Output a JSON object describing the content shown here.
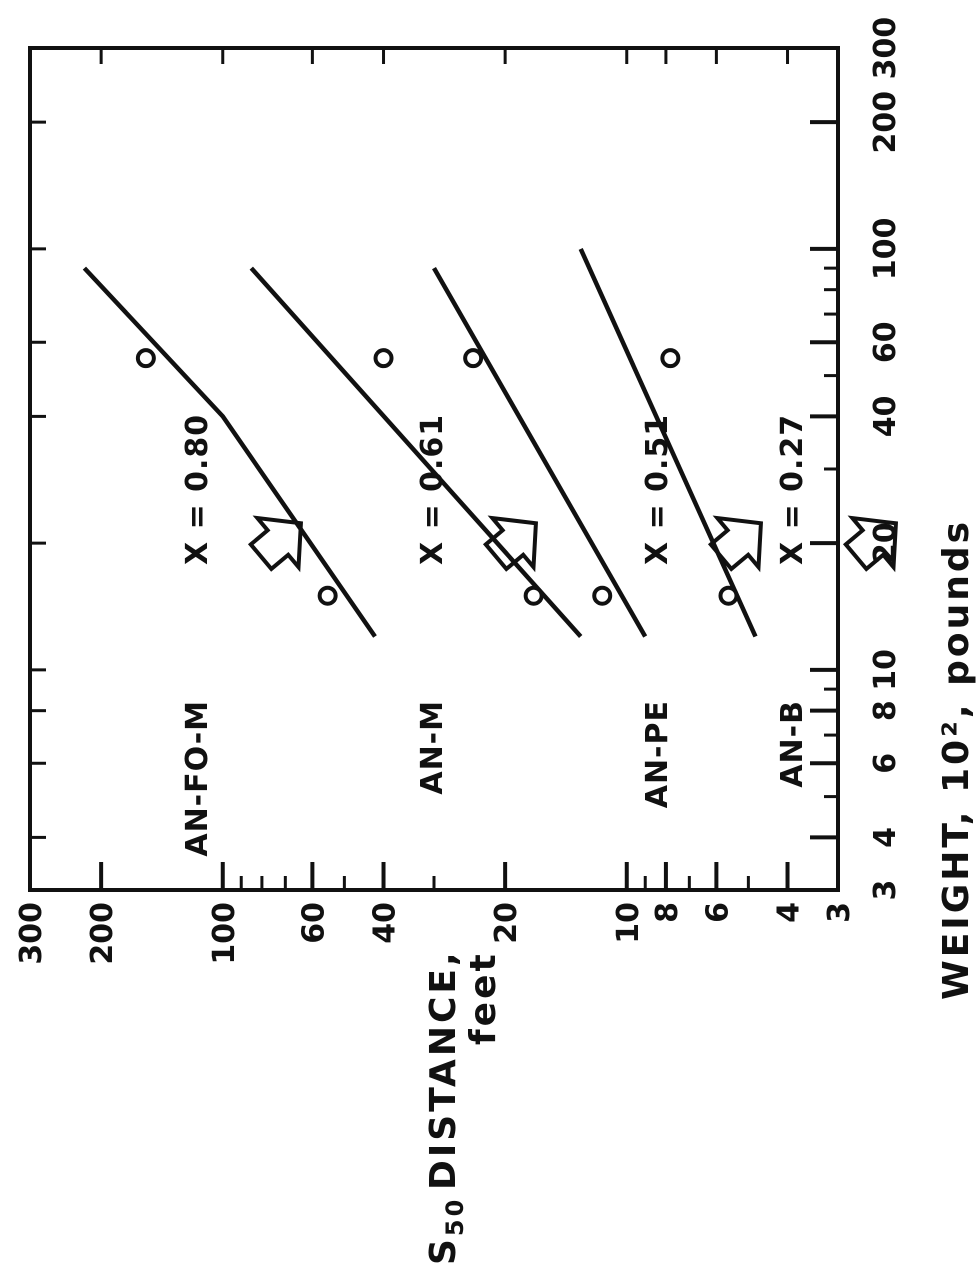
{
  "chart_data": {
    "type": "line",
    "x_scale": "log",
    "y_scale": "log",
    "xlim": [
      3,
      300
    ],
    "ylim": [
      3,
      300
    ],
    "x_ticks": [
      3,
      4,
      6,
      8,
      10,
      20,
      40,
      60,
      100,
      200,
      300
    ],
    "x_tick_labels": [
      "3",
      "4",
      "6",
      "8",
      "10",
      "20",
      "40",
      "60",
      "100",
      "200",
      "300"
    ],
    "y_ticks": [
      3,
      4,
      6,
      8,
      10,
      20,
      40,
      60,
      100,
      200,
      300
    ],
    "y_tick_labels": [
      "3",
      "4",
      "6",
      "8",
      "10",
      "20",
      "40",
      "60",
      "100",
      "200",
      "300"
    ],
    "xlabel": "WEIGHT, 10², pounds",
    "ylabel": {
      "subscript_symbol": "S",
      "subscript": "50",
      "line1": "DISTANCE,",
      "line2": "feet"
    },
    "series": [
      {
        "name": "AN-FO-M",
        "annotation": "X = 0.80",
        "line": [
          [
            12,
            42
          ],
          [
            40,
            100
          ],
          [
            90,
            220
          ]
        ],
        "points": [
          [
            15,
            55
          ],
          [
            55,
            155
          ]
        ]
      },
      {
        "name": "AN-M",
        "annotation": "X = 0.61",
        "line": [
          [
            12,
            13
          ],
          [
            90,
            85
          ]
        ],
        "points": [
          [
            15,
            17
          ],
          [
            55,
            40
          ]
        ]
      },
      {
        "name": "AN-PE",
        "annotation": "X = 0.51",
        "line": [
          [
            12,
            9
          ],
          [
            90,
            30
          ]
        ],
        "points": [
          [
            15,
            11.5
          ],
          [
            55,
            24
          ]
        ]
      },
      {
        "name": "AN-B",
        "annotation": "X = 0.27",
        "line": [
          [
            12,
            4.8
          ],
          [
            100,
            13
          ]
        ],
        "points": [
          [
            15,
            5.6
          ],
          [
            55,
            7.8
          ]
        ]
      }
    ],
    "grid": false,
    "legend": "none"
  }
}
